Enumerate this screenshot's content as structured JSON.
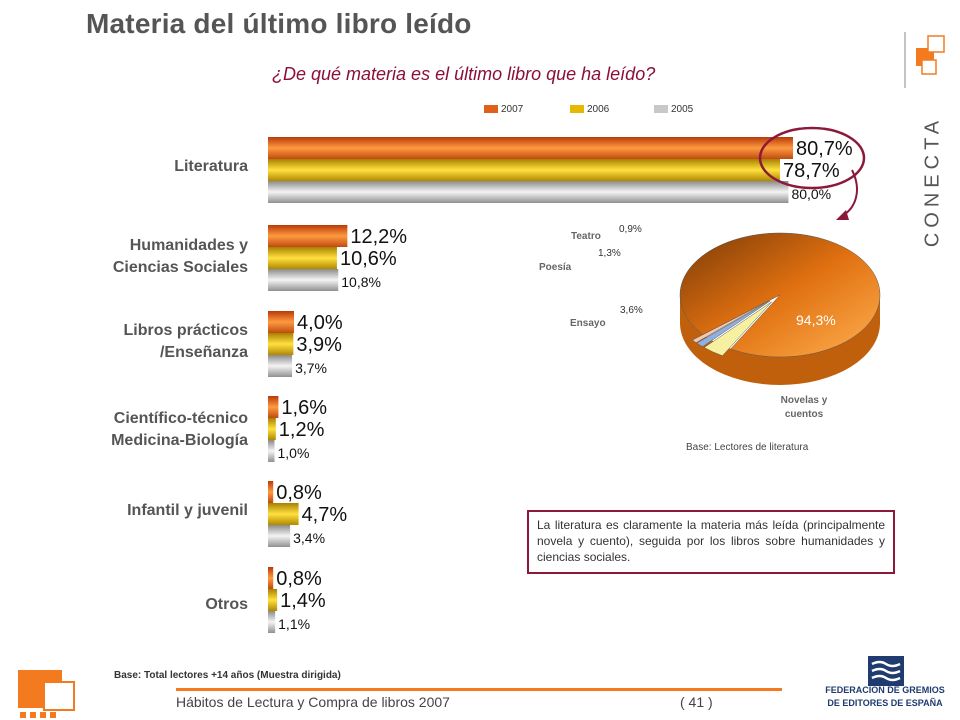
{
  "page": {
    "title": "Materia del último libro leído",
    "question": "¿De qué materia es el último libro que ha leído?",
    "base_total": "Base: Total lectores +14 años (Muestra dirigida)",
    "footer": "Hábitos de Lectura y Compra de libros 2007",
    "page_number": "( 41 )",
    "brand": "CONECTA",
    "federation": "FEDERACIÓN DE GREMIOS DE EDITORES DE ESPAÑA",
    "conclusion": "La literatura es claramente la materia más leída (principalmente novela y cuento), seguida por los libros sobre humanidades y ciencias sociales."
  },
  "colors": {
    "y2007": "#e0601a",
    "y2006": "#e6b800",
    "y2005": "#c8c8c8",
    "accent": "#8b1a3a",
    "pie_main": "#f08a1c"
  },
  "chart_data": [
    {
      "type": "bar",
      "orientation": "horizontal",
      "categories": [
        "Literatura",
        "Humanidades y\nCiencias Sociales",
        "Libros prácticos\n/Enseñanza",
        "Científico-técnico\nMedicina-Biología",
        "Infantil y juvenil",
        "Otros"
      ],
      "series": [
        {
          "name": "2007",
          "values": [
            80.7,
            12.2,
            4.0,
            1.6,
            0.8,
            0.8
          ],
          "labels": [
            "80,7%",
            "12,2%",
            "4,0%",
            "1,6%",
            "0,8%",
            "0,8%"
          ]
        },
        {
          "name": "2006",
          "values": [
            78.7,
            10.6,
            3.9,
            1.2,
            4.7,
            1.4
          ],
          "labels": [
            "78,7%",
            "10,6%",
            "3,9%",
            "1,2%",
            "4,7%",
            "1,4%"
          ]
        },
        {
          "name": "2005",
          "values": [
            80.0,
            10.8,
            3.7,
            1.0,
            3.4,
            1.1
          ],
          "labels": [
            "80,0%",
            "10,8%",
            "3,7%",
            "1,0%",
            "3,4%",
            "1,1%"
          ]
        }
      ],
      "xlim": [
        0,
        80.7
      ],
      "legend": "top"
    },
    {
      "type": "pie",
      "labels": [
        "Novelas y cuentos",
        "Ensayo",
        "Poesía",
        "Teatro"
      ],
      "values": [
        94.3,
        3.6,
        1.3,
        0.9
      ],
      "value_labels": [
        "94,3%",
        "3,6%",
        "1,3%",
        "0,9%"
      ],
      "colors": [
        "#f08a1c",
        "#f6f0a0",
        "#8fb0e0",
        "#f4c8a8"
      ],
      "base": "Base: Lectores de literatura"
    }
  ]
}
